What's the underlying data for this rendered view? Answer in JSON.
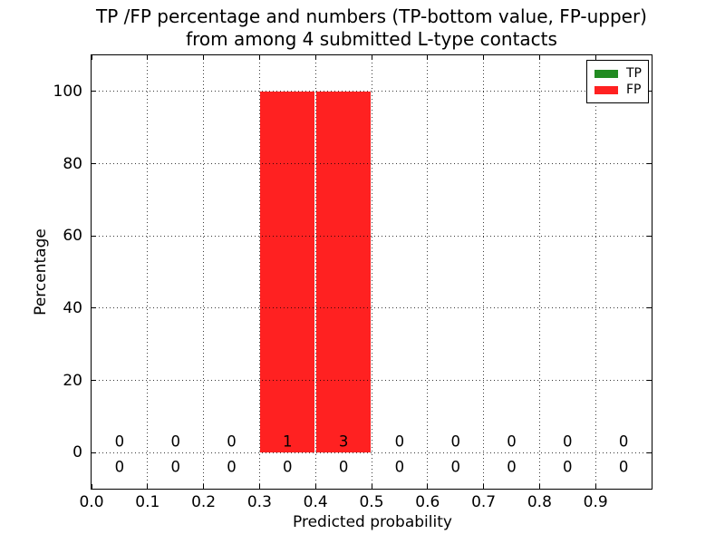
{
  "chart_data": {
    "type": "bar",
    "title": [
      "TP /FP percentage and numbers (TP-bottom value, FP-upper)",
      "from among 4 submitted L-type contacts"
    ],
    "xlabel": "Predicted probability",
    "ylabel": "Percentage",
    "xlim": [
      0.0,
      1.0
    ],
    "ylim": [
      -10,
      110
    ],
    "bin_edges": [
      0.0,
      0.1,
      0.2,
      0.3,
      0.4,
      0.5,
      0.6,
      0.7,
      0.8,
      0.9,
      1.0
    ],
    "x_tick_labels": [
      "0.0",
      "0.1",
      "0.2",
      "0.3",
      "0.4",
      "0.5",
      "0.6",
      "0.7",
      "0.8",
      "0.9"
    ],
    "y_tick_values": [
      0,
      20,
      40,
      60,
      80,
      100
    ],
    "y_tick_labels": [
      "0",
      "20",
      "40",
      "60",
      "80",
      "100"
    ],
    "grid_style": "dotted",
    "legend": {
      "position": "upper right",
      "entries": [
        {
          "label": "TP",
          "color": "#228b22"
        },
        {
          "label": "FP",
          "color": "#ff2121"
        }
      ]
    },
    "series": [
      {
        "name": "TP",
        "color": "#228b22",
        "count_row": "bottom",
        "percent": [
          0,
          0,
          0,
          0,
          0,
          0,
          0,
          0,
          0,
          0
        ],
        "counts": [
          0,
          0,
          0,
          0,
          0,
          0,
          0,
          0,
          0,
          0
        ]
      },
      {
        "name": "FP",
        "color": "#ff2121",
        "count_row": "upper",
        "percent": [
          0,
          0,
          0,
          100,
          100,
          0,
          0,
          0,
          0,
          0
        ],
        "counts": [
          0,
          0,
          0,
          1,
          3,
          0,
          0,
          0,
          0,
          0
        ]
      }
    ]
  }
}
